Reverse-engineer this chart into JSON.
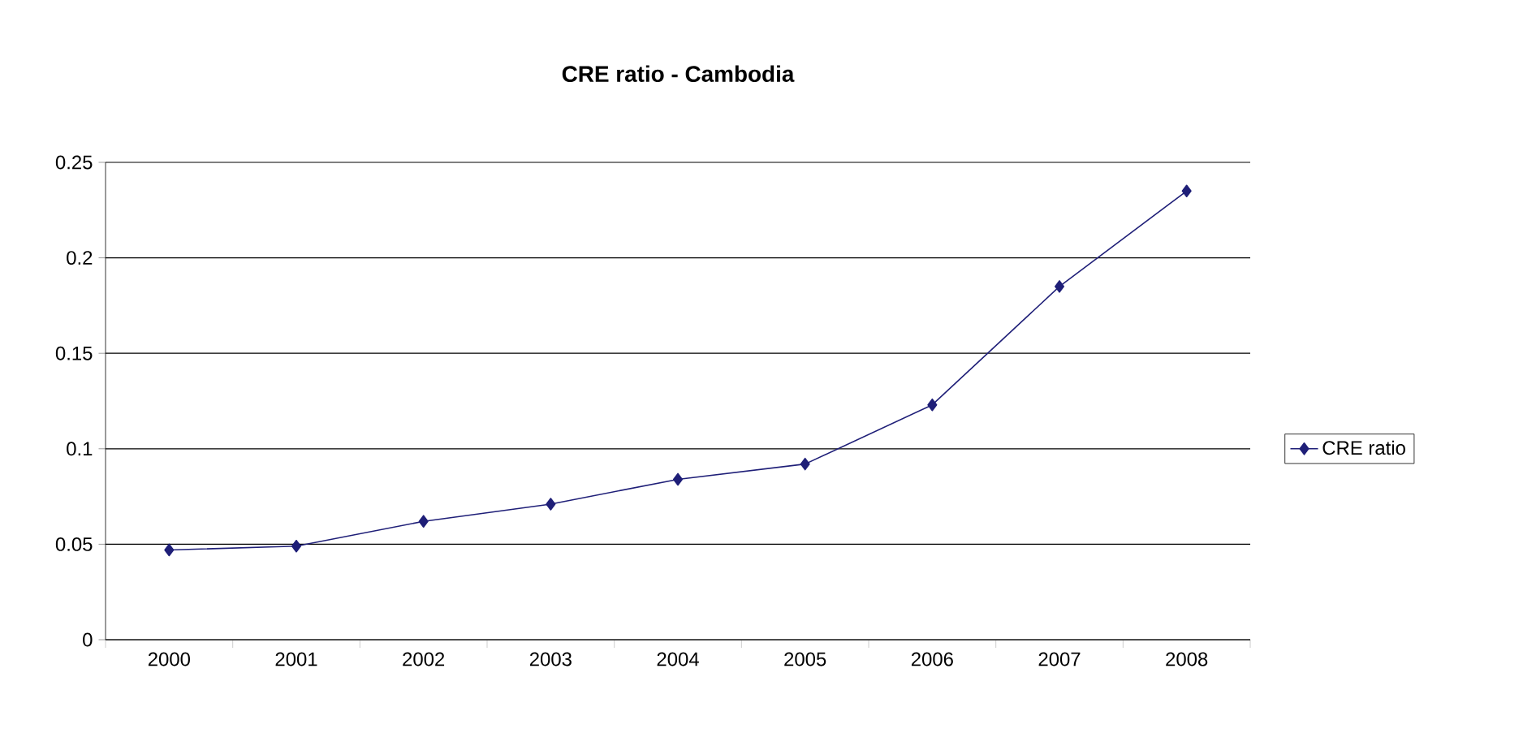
{
  "chart_data": {
    "type": "line",
    "title": "CRE ratio - Cambodia",
    "categories": [
      "2000",
      "2001",
      "2002",
      "2003",
      "2004",
      "2005",
      "2006",
      "2007",
      "2008"
    ],
    "series": [
      {
        "name": "CRE ratio",
        "color": "#1f1f78",
        "values": [
          0.047,
          0.049,
          0.062,
          0.071,
          0.084,
          0.092,
          0.123,
          0.185,
          0.235
        ]
      }
    ],
    "ylim": [
      0,
      0.25
    ],
    "yticks": [
      0,
      0.05,
      0.1,
      0.15,
      0.2,
      0.25
    ],
    "grid": "y",
    "legend": "right",
    "marker": "diamond",
    "line_style": "solid"
  }
}
